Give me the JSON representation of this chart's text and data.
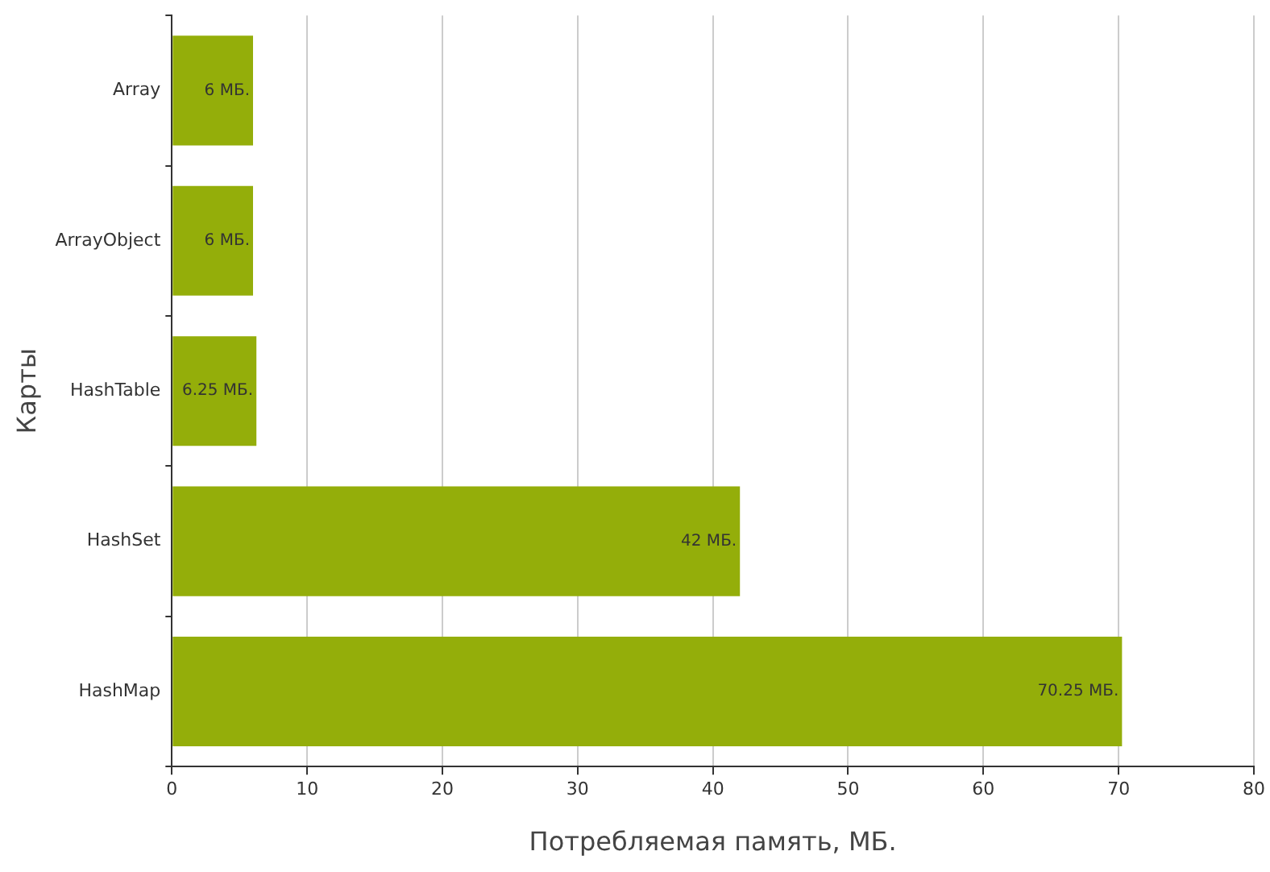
{
  "chart_data": {
    "type": "bar",
    "orientation": "horizontal",
    "xlabel": "Потребляемая память, МБ.",
    "ylabel": "Карты",
    "categories": [
      "Array",
      "ArrayObject",
      "HashTable",
      "HashSet",
      "HashMap"
    ],
    "values": [
      6,
      6,
      6.25,
      42,
      70.25
    ],
    "value_labels": [
      "6 МБ.",
      "6 МБ.",
      "6.25 МБ.",
      "42 МБ.",
      "70.25 МБ."
    ],
    "color": "#94ae0a",
    "xlim": [
      0,
      80
    ],
    "xticks": [
      0,
      10,
      20,
      30,
      40,
      50,
      60,
      70,
      80
    ],
    "grid": "x",
    "legend": false
  }
}
